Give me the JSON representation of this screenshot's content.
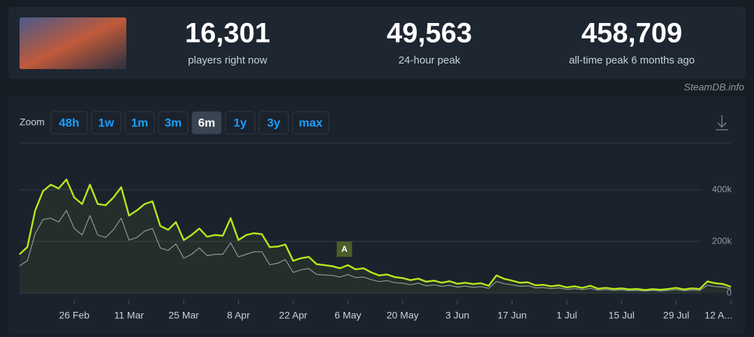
{
  "header": {
    "stats": [
      {
        "value": "16,301",
        "label": "players right now"
      },
      {
        "value": "49,563",
        "label": "24-hour peak"
      },
      {
        "value": "458,709",
        "label": "all-time peak 6 months ago"
      }
    ],
    "site": "SteamDB.info"
  },
  "zoom": {
    "label": "Zoom",
    "options": [
      "48h",
      "1w",
      "1m",
      "3m",
      "6m",
      "1y",
      "3y",
      "max"
    ],
    "active": "6m"
  },
  "chart_data": {
    "type": "line",
    "annotation": "A",
    "categories": [
      null,
      null,
      null,
      null,
      null,
      null,
      null,
      "26 Feb",
      null,
      null,
      null,
      null,
      null,
      null,
      "11 Mar",
      null,
      null,
      null,
      null,
      null,
      null,
      "25 Mar",
      null,
      null,
      null,
      null,
      null,
      null,
      "8 Apr",
      null,
      null,
      null,
      null,
      null,
      null,
      "22 Apr",
      null,
      null,
      null,
      null,
      null,
      null,
      "6 May",
      null,
      null,
      null,
      null,
      null,
      null,
      "20 May",
      null,
      null,
      null,
      null,
      null,
      null,
      "3 Jun",
      null,
      null,
      null,
      null,
      null,
      null,
      "17 Jun",
      null,
      null,
      null,
      null,
      null,
      null,
      "1 Jul",
      null,
      null,
      null,
      null,
      null,
      null,
      "15 Jul",
      null,
      null,
      null,
      null,
      null,
      null,
      "29 Jul",
      null,
      null,
      null,
      null,
      null,
      null,
      "12 A..."
    ],
    "series": [
      {
        "color": "#b5e61d",
        "values": [
          150000,
          178000,
          320000,
          395000,
          420000,
          405000,
          440000,
          370000,
          345000,
          420000,
          345000,
          340000,
          370000,
          410000,
          300000,
          320000,
          345000,
          355000,
          260000,
          245000,
          275000,
          205000,
          225000,
          250000,
          218000,
          225000,
          222000,
          290000,
          205000,
          225000,
          232000,
          228000,
          178000,
          180000,
          188000,
          125000,
          135000,
          140000,
          112000,
          108000,
          104000,
          96000,
          108000,
          92000,
          96000,
          80000,
          68000,
          72000,
          62000,
          58000,
          50000,
          56000,
          44000,
          48000,
          40000,
          46000,
          36000,
          40000,
          35000,
          38000,
          28000,
          68000,
          55000,
          48000,
          40000,
          42000,
          30000,
          32000,
          26000,
          30000,
          22000,
          26000,
          20000,
          28000,
          17000,
          20000,
          16000,
          18000,
          14000,
          16000,
          12000,
          15000,
          13000,
          16000,
          20000,
          14000,
          18000,
          16000,
          45000,
          38000,
          35000,
          24000
        ]
      },
      {
        "color": "#8f98a0",
        "values": [
          105000,
          125000,
          230000,
          285000,
          290000,
          275000,
          320000,
          250000,
          225000,
          300000,
          225000,
          215000,
          245000,
          290000,
          205000,
          215000,
          240000,
          250000,
          175000,
          165000,
          190000,
          135000,
          150000,
          175000,
          145000,
          150000,
          150000,
          195000,
          140000,
          150000,
          160000,
          160000,
          110000,
          115000,
          130000,
          80000,
          90000,
          95000,
          72000,
          70000,
          68000,
          62000,
          72000,
          60000,
          62000,
          52000,
          44000,
          48000,
          40000,
          38000,
          32000,
          38000,
          28000,
          32000,
          26000,
          30000,
          23000,
          27000,
          22000,
          25000,
          18000,
          45000,
          36000,
          32000,
          26000,
          28000,
          20000,
          21000,
          17000,
          20000,
          14000,
          17000,
          13000,
          18000,
          11000,
          13000,
          10000,
          12000,
          9000,
          10000,
          8000,
          10000,
          8000,
          10000,
          13000,
          9000,
          12000,
          10000,
          30000,
          25000,
          23000,
          16000
        ]
      }
    ],
    "ylim": [
      0,
      600000
    ],
    "yticks": [
      0,
      {
        "value": 200000,
        "label": "200k"
      },
      {
        "value": 400000,
        "label": "400k"
      }
    ],
    "grid": true
  }
}
